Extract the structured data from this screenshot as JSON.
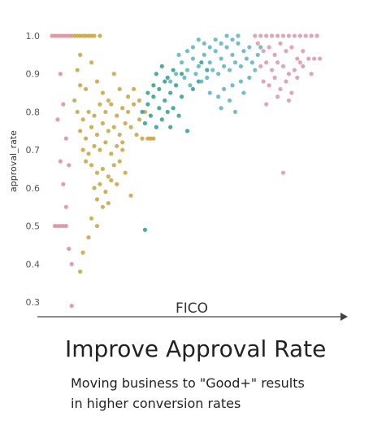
{
  "headline": "Improve Approval Rate",
  "caption_lines": [
    "Moving business to \"Good+\" results",
    "in higher conversion rates"
  ],
  "colors": {
    "poor": "#dc8d9a",
    "fair": "#c9a23f",
    "good": "#2e9d8e",
    "very_good": "#5bb2c3",
    "excellent": "#d896a9",
    "axis": "#444444"
  },
  "chart_data": {
    "type": "scatter",
    "title": "",
    "xlabel": "FICO",
    "ylabel": "approval_rate",
    "x_tick_labels": [],
    "y_ticks": [
      0.3,
      0.4,
      0.5,
      0.6,
      0.7,
      0.8,
      0.9,
      1.0
    ],
    "y_tick_labels": [
      "0.3",
      "0.4",
      "0.5",
      "0.6",
      "0.7",
      "0.8",
      "0.9",
      "1.0"
    ],
    "xlim": [
      0,
      100
    ],
    "ylim": [
      0.27,
      1.03
    ],
    "grid": false,
    "legend": "none",
    "series": [
      {
        "color_key": "poor",
        "points": [
          [
            2,
            1.0
          ],
          [
            3,
            1.0
          ],
          [
            4,
            1.0
          ],
          [
            5,
            1.0
          ],
          [
            6,
            1.0
          ],
          [
            7,
            1.0
          ],
          [
            8,
            1.0
          ],
          [
            9,
            1.0
          ],
          [
            3,
            0.5
          ],
          [
            4,
            0.5
          ],
          [
            5,
            0.5
          ],
          [
            6,
            0.5
          ],
          [
            7,
            0.5
          ],
          [
            5,
            0.9
          ],
          [
            6,
            0.82
          ],
          [
            4,
            0.78
          ],
          [
            7,
            0.73
          ],
          [
            8,
            0.66
          ],
          [
            6,
            0.61
          ],
          [
            7,
            0.55
          ],
          [
            9,
            0.4
          ],
          [
            8,
            0.44
          ],
          [
            9,
            0.29
          ],
          [
            5,
            0.67
          ]
        ]
      },
      {
        "color_key": "fair",
        "points": [
          [
            10,
            1.0
          ],
          [
            11,
            1.0
          ],
          [
            12,
            1.0
          ],
          [
            13,
            1.0
          ],
          [
            14,
            1.0
          ],
          [
            15,
            1.0
          ],
          [
            16,
            1.0
          ],
          [
            17,
            1.0
          ],
          [
            19,
            1.0
          ],
          [
            12,
            0.95
          ],
          [
            16,
            0.93
          ],
          [
            18,
            0.88
          ],
          [
            14,
            0.86
          ],
          [
            20,
            0.85
          ],
          [
            22,
            0.83
          ],
          [
            11,
            0.8
          ],
          [
            13,
            0.78
          ],
          [
            15,
            0.8
          ],
          [
            17,
            0.79
          ],
          [
            19,
            0.82
          ],
          [
            21,
            0.8
          ],
          [
            23,
            0.82
          ],
          [
            25,
            0.79
          ],
          [
            27,
            0.81
          ],
          [
            29,
            0.8
          ],
          [
            31,
            0.82
          ],
          [
            33,
            0.78
          ],
          [
            12,
            0.75
          ],
          [
            14,
            0.73
          ],
          [
            16,
            0.76
          ],
          [
            18,
            0.74
          ],
          [
            20,
            0.77
          ],
          [
            22,
            0.75
          ],
          [
            24,
            0.76
          ],
          [
            26,
            0.74
          ],
          [
            28,
            0.77
          ],
          [
            30,
            0.76
          ],
          [
            32,
            0.74
          ],
          [
            34,
            0.73
          ],
          [
            36,
            0.73
          ],
          [
            37,
            0.73
          ],
          [
            38,
            0.73
          ],
          [
            13,
            0.7
          ],
          [
            15,
            0.69
          ],
          [
            17,
            0.71
          ],
          [
            19,
            0.7
          ],
          [
            21,
            0.72
          ],
          [
            23,
            0.69
          ],
          [
            25,
            0.71
          ],
          [
            27,
            0.7
          ],
          [
            14,
            0.67
          ],
          [
            16,
            0.66
          ],
          [
            18,
            0.64
          ],
          [
            20,
            0.65
          ],
          [
            22,
            0.63
          ],
          [
            24,
            0.66
          ],
          [
            26,
            0.67
          ],
          [
            28,
            0.64
          ],
          [
            17,
            0.6
          ],
          [
            19,
            0.61
          ],
          [
            21,
            0.59
          ],
          [
            23,
            0.62
          ],
          [
            18,
            0.57
          ],
          [
            20,
            0.55
          ],
          [
            22,
            0.56
          ],
          [
            16,
            0.52
          ],
          [
            18,
            0.5
          ],
          [
            15,
            0.47
          ],
          [
            13,
            0.43
          ],
          [
            12,
            0.38
          ],
          [
            30,
            0.58
          ],
          [
            25,
            0.61
          ],
          [
            27,
            0.72
          ],
          [
            11,
            0.91
          ],
          [
            24,
            0.9
          ],
          [
            26,
            0.86
          ],
          [
            29,
            0.84
          ],
          [
            31,
            0.86
          ],
          [
            33,
            0.83
          ],
          [
            35,
            0.8
          ],
          [
            10,
            0.83
          ],
          [
            12,
            0.87
          ]
        ]
      },
      {
        "color_key": "good",
        "points": [
          [
            34,
            0.8
          ],
          [
            36,
            0.82
          ],
          [
            38,
            0.84
          ],
          [
            40,
            0.81
          ],
          [
            42,
            0.83
          ],
          [
            35,
            0.77
          ],
          [
            37,
            0.79
          ],
          [
            39,
            0.76
          ],
          [
            41,
            0.78
          ],
          [
            43,
            0.8
          ],
          [
            36,
            0.85
          ],
          [
            38,
            0.87
          ],
          [
            40,
            0.86
          ],
          [
            42,
            0.88
          ],
          [
            44,
            0.85
          ],
          [
            46,
            0.87
          ],
          [
            48,
            0.84
          ],
          [
            45,
            0.81
          ],
          [
            47,
            0.79
          ],
          [
            39,
            0.9
          ],
          [
            41,
            0.92
          ],
          [
            43,
            0.89
          ],
          [
            45,
            0.91
          ],
          [
            48,
            0.9
          ],
          [
            35,
            0.49
          ],
          [
            50,
            0.75
          ],
          [
            52,
            0.86
          ],
          [
            55,
            0.93
          ],
          [
            57,
            0.91
          ],
          [
            54,
            0.88
          ],
          [
            44,
            0.76
          ]
        ]
      },
      {
        "color_key": "very_good",
        "points": [
          [
            48,
            0.93
          ],
          [
            50,
            0.91
          ],
          [
            52,
            0.94
          ],
          [
            54,
            0.92
          ],
          [
            56,
            0.95
          ],
          [
            58,
            0.93
          ],
          [
            60,
            0.96
          ],
          [
            62,
            0.94
          ],
          [
            64,
            0.97
          ],
          [
            66,
            0.95
          ],
          [
            68,
            0.98
          ],
          [
            70,
            0.96
          ],
          [
            72,
            0.97
          ],
          [
            49,
            0.89
          ],
          [
            51,
            0.87
          ],
          [
            53,
            0.9
          ],
          [
            55,
            0.88
          ],
          [
            57,
            0.89
          ],
          [
            59,
            0.91
          ],
          [
            61,
            0.9
          ],
          [
            63,
            0.92
          ],
          [
            65,
            0.91
          ],
          [
            67,
            0.93
          ],
          [
            69,
            0.92
          ],
          [
            71,
            0.94
          ],
          [
            73,
            0.93
          ],
          [
            60,
            0.99
          ],
          [
            62,
            0.98
          ],
          [
            64,
            1.0
          ],
          [
            66,
            0.99
          ],
          [
            68,
            1.0
          ],
          [
            58,
            0.97
          ],
          [
            56,
            0.98
          ],
          [
            52,
            0.97
          ],
          [
            54,
            0.99
          ],
          [
            50,
            0.96
          ],
          [
            63,
            0.86
          ],
          [
            66,
            0.87
          ],
          [
            69,
            0.88
          ],
          [
            72,
            0.89
          ],
          [
            74,
            0.91
          ],
          [
            58,
            0.85
          ],
          [
            61,
            0.84
          ],
          [
            65,
            0.83
          ],
          [
            70,
            0.85
          ],
          [
            62,
            0.81
          ],
          [
            67,
            0.8
          ],
          [
            75,
            0.95
          ],
          [
            76,
            0.97
          ],
          [
            47,
            0.95
          ],
          [
            46,
            0.9
          ],
          [
            44,
            0.88
          ]
        ]
      },
      {
        "color_key": "excellent",
        "points": [
          [
            74,
            1.0
          ],
          [
            76,
            1.0
          ],
          [
            78,
            1.0
          ],
          [
            80,
            1.0
          ],
          [
            82,
            1.0
          ],
          [
            84,
            1.0
          ],
          [
            86,
            1.0
          ],
          [
            88,
            1.0
          ],
          [
            90,
            1.0
          ],
          [
            92,
            1.0
          ],
          [
            94,
            1.0
          ],
          [
            96,
            1.0
          ],
          [
            75,
            0.98
          ],
          [
            77,
            0.96
          ],
          [
            79,
            0.97
          ],
          [
            81,
            0.95
          ],
          [
            83,
            0.98
          ],
          [
            85,
            0.96
          ],
          [
            87,
            0.97
          ],
          [
            89,
            0.94
          ],
          [
            91,
            0.96
          ],
          [
            93,
            0.94
          ],
          [
            95,
            0.94
          ],
          [
            97,
            0.94
          ],
          [
            76,
            0.92
          ],
          [
            78,
            0.93
          ],
          [
            80,
            0.91
          ],
          [
            82,
            0.93
          ],
          [
            84,
            0.92
          ],
          [
            86,
            0.9
          ],
          [
            88,
            0.91
          ],
          [
            90,
            0.93
          ],
          [
            77,
            0.88
          ],
          [
            79,
            0.87
          ],
          [
            81,
            0.89
          ],
          [
            83,
            0.86
          ],
          [
            85,
            0.88
          ],
          [
            87,
            0.85
          ],
          [
            89,
            0.89
          ],
          [
            91,
            0.92
          ],
          [
            94,
            0.9
          ],
          [
            82,
            0.84
          ],
          [
            86,
            0.83
          ],
          [
            78,
            0.82
          ],
          [
            84,
            0.64
          ]
        ]
      }
    ]
  }
}
